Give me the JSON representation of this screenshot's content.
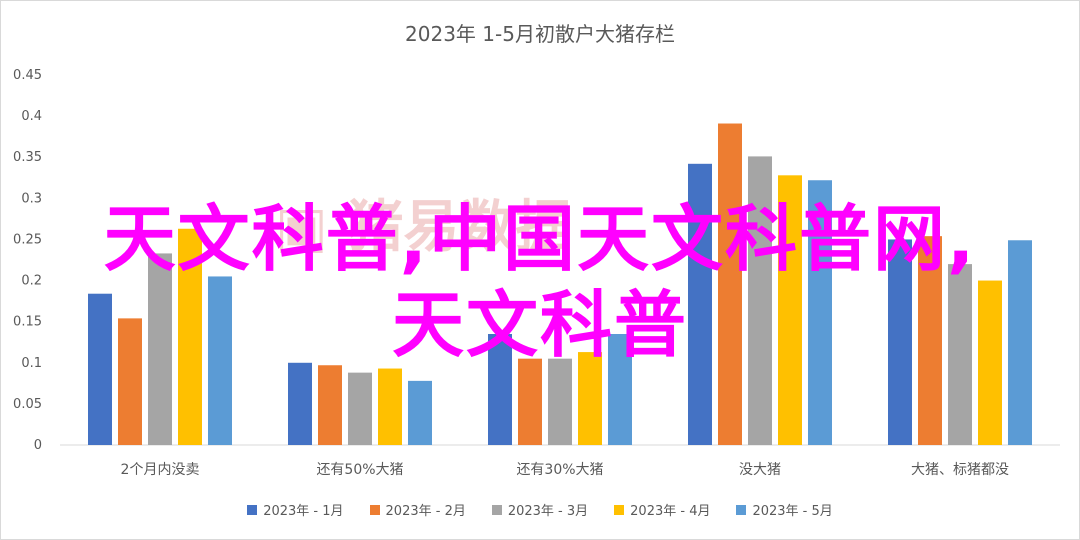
{
  "chart_data": {
    "type": "bar",
    "title": "2023年 1-5月初散户大猪存栏",
    "categories": [
      "2个月内没卖",
      "还有50%大猪",
      "还有30%大猪",
      "没大猪",
      "大猪、标猪都没"
    ],
    "series": [
      {
        "name": "2023年 - 1月",
        "color": "#4472c4",
        "values": [
          0.184,
          0.1,
          0.135,
          0.342,
          0.25
        ]
      },
      {
        "name": "2023年 - 2月",
        "color": "#ed7d31",
        "values": [
          0.154,
          0.097,
          0.105,
          0.391,
          0.254
        ]
      },
      {
        "name": "2023年 - 3月",
        "color": "#a5a5a5",
        "values": [
          0.233,
          0.088,
          0.105,
          0.351,
          0.22
        ]
      },
      {
        "name": "2023年 - 4月",
        "color": "#ffc000",
        "values": [
          0.263,
          0.093,
          0.113,
          0.328,
          0.2
        ]
      },
      {
        "name": "2023年 - 5月",
        "color": "#5b9bd5",
        "values": [
          0.205,
          0.078,
          0.135,
          0.322,
          0.249
        ]
      }
    ],
    "yticks": [
      "0",
      "0.05",
      "0.1",
      "0.15",
      "0.2",
      "0.25",
      "0.3",
      "0.35",
      "0.4",
      "0.45"
    ],
    "ylim": [
      0,
      0.45
    ],
    "grid": false,
    "legend_position": "bottom"
  },
  "overlay": {
    "line1": "天文科普,中国天文科普网,",
    "line2": "天文科普"
  },
  "logo_text": "猪易数据"
}
